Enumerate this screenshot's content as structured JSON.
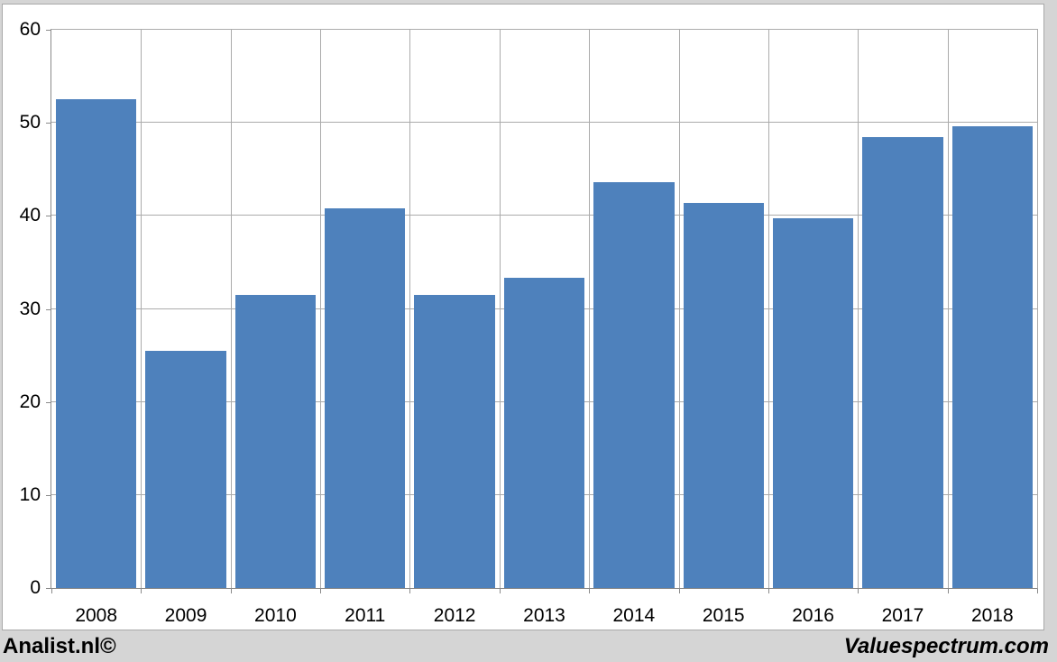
{
  "footer": {
    "left": "Analist.nl©",
    "right": "Valuespectrum.com"
  },
  "colors": {
    "bar": "#4E81BC",
    "gridline": "#ABABAB",
    "axis": "#8A8A8A",
    "background": "#D5D5D5",
    "panel": "#FFFFFF",
    "panel_border": "#A8A8A8",
    "text": "#000000"
  },
  "chart_data": {
    "type": "bar",
    "title": "",
    "xlabel": "",
    "ylabel": "",
    "categories": [
      "2008",
      "2009",
      "2010",
      "2011",
      "2012",
      "2013",
      "2014",
      "2015",
      "2016",
      "2017",
      "2018"
    ],
    "values": [
      52.5,
      25.5,
      31.5,
      40.8,
      31.5,
      33.3,
      43.6,
      41.4,
      39.7,
      48.5,
      49.6
    ],
    "ylim": [
      0,
      60
    ],
    "yticks": [
      0,
      10,
      20,
      30,
      40,
      50,
      60
    ],
    "grid": true,
    "legend": false,
    "bar_gap_fraction": 0.1
  }
}
